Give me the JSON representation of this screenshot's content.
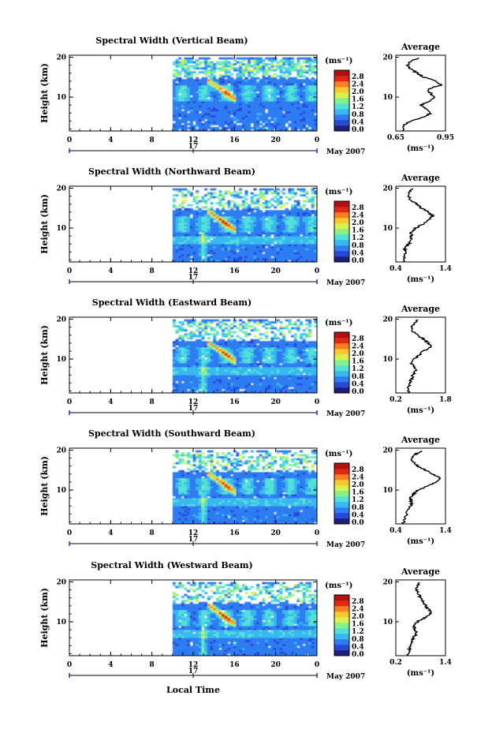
{
  "chart_data": {
    "type": "heatmap",
    "color_scale": {
      "title": "(ms⁻¹)",
      "ticks": [
        "0.0",
        "0.4",
        "0.8",
        "1.2",
        "1.6",
        "2.0",
        "2.4",
        "2.8"
      ],
      "colors": [
        "#1e1e78",
        "#2848d8",
        "#2f7cf2",
        "#38b8f0",
        "#52e0d8",
        "#88f088",
        "#d8f050",
        "#f8c830",
        "#f88020",
        "#e02818",
        "#b01010"
      ]
    },
    "x_axis": {
      "ticks": [
        "0",
        "4",
        "8",
        "12",
        "16",
        "20",
        "0"
      ],
      "range_hours": [
        0,
        24
      ],
      "day_label": "17",
      "month_label": "May 2007",
      "xlabel": "Local Time"
    },
    "y_axis": {
      "label": "Height (km)",
      "ticks": [
        "10",
        "20"
      ],
      "range_km": [
        1.5,
        20.5
      ]
    },
    "data_start_hour": 10,
    "panels": [
      {
        "title": "Spectral Width (Vertical Beam)",
        "avg_title": "Average",
        "avg_xlabel": "(ms⁻¹)",
        "avg_xticks": [
          "0.65",
          "0.95"
        ],
        "avg_xrange": [
          0.65,
          0.95
        ],
        "avg_profile": {
          "height_km": [
            1.5,
            3,
            4,
            5,
            6,
            7,
            8,
            9,
            10,
            11,
            12,
            13,
            14,
            15,
            16,
            17,
            18,
            19,
            20
          ],
          "width": [
            0.69,
            0.7,
            0.74,
            0.82,
            0.86,
            0.83,
            0.8,
            0.86,
            0.88,
            0.86,
            0.84,
            0.92,
            0.9,
            0.82,
            0.78,
            0.74,
            0.72,
            0.74,
            0.8
          ]
        }
      },
      {
        "title": "Spectral Width (Northward Beam)",
        "avg_title": "Average",
        "avg_xlabel": "(ms⁻¹)",
        "avg_xticks": [
          "0.4",
          "1.4"
        ],
        "avg_xrange": [
          0.4,
          1.4
        ],
        "avg_profile": {
          "height_km": [
            1.5,
            3,
            4,
            5,
            6,
            7,
            8,
            9,
            10,
            11,
            12,
            13,
            14,
            15,
            16,
            17,
            18,
            19,
            20
          ],
          "width": [
            0.55,
            0.57,
            0.6,
            0.58,
            0.66,
            0.7,
            0.72,
            0.7,
            0.8,
            0.95,
            1.05,
            1.15,
            1.05,
            0.92,
            0.82,
            0.7,
            0.65,
            0.68,
            0.75
          ]
        }
      },
      {
        "title": "Spectral Width (Eastward Beam)",
        "avg_title": "Average",
        "avg_xlabel": "(ms⁻¹)",
        "avg_xticks": [
          "0.2",
          "1.8"
        ],
        "avg_xrange": [
          0.2,
          1.8
        ],
        "avg_profile": {
          "height_km": [
            1.5,
            3,
            4,
            5,
            6,
            7,
            8,
            9,
            10,
            11,
            12,
            13,
            14,
            15,
            16,
            17,
            18,
            19,
            20
          ],
          "width": [
            0.6,
            0.62,
            0.66,
            0.7,
            0.75,
            0.85,
            0.78,
            0.7,
            0.78,
            0.95,
            1.1,
            1.35,
            1.25,
            1.1,
            0.9,
            0.75,
            0.72,
            0.78,
            0.9
          ]
        }
      },
      {
        "title": "Spectral Width (Southward Beam)",
        "avg_title": "Average",
        "avg_xlabel": "(ms⁻¹)",
        "avg_xticks": [
          "0.4",
          "1.4"
        ],
        "avg_xrange": [
          0.4,
          1.4
        ],
        "avg_profile": {
          "height_km": [
            1.5,
            3,
            4,
            5,
            6,
            7,
            8,
            9,
            10,
            11,
            12,
            13,
            14,
            15,
            16,
            17,
            18,
            19,
            20
          ],
          "width": [
            0.55,
            0.58,
            0.62,
            0.65,
            0.7,
            0.72,
            0.68,
            0.75,
            0.85,
            1.05,
            1.2,
            1.3,
            1.15,
            1.0,
            0.85,
            0.75,
            0.72,
            0.8,
            0.95
          ]
        }
      },
      {
        "title": "Spectral Width (Westward Beam)",
        "avg_title": "Average",
        "avg_xlabel": "(ms⁻¹)",
        "avg_xticks": [
          "0.2",
          "1.4"
        ],
        "avg_xrange": [
          0.2,
          1.4
        ],
        "avg_profile": {
          "height_km": [
            1.5,
            3,
            4,
            5,
            6,
            7,
            8,
            9,
            10,
            11,
            12,
            13,
            14,
            15,
            16,
            17,
            18,
            19,
            20
          ],
          "width": [
            0.5,
            0.52,
            0.56,
            0.6,
            0.62,
            0.7,
            0.66,
            0.62,
            0.72,
            0.9,
            1.05,
            1.0,
            0.92,
            0.88,
            0.8,
            0.74,
            0.7,
            0.72,
            0.8
          ]
        }
      }
    ]
  }
}
